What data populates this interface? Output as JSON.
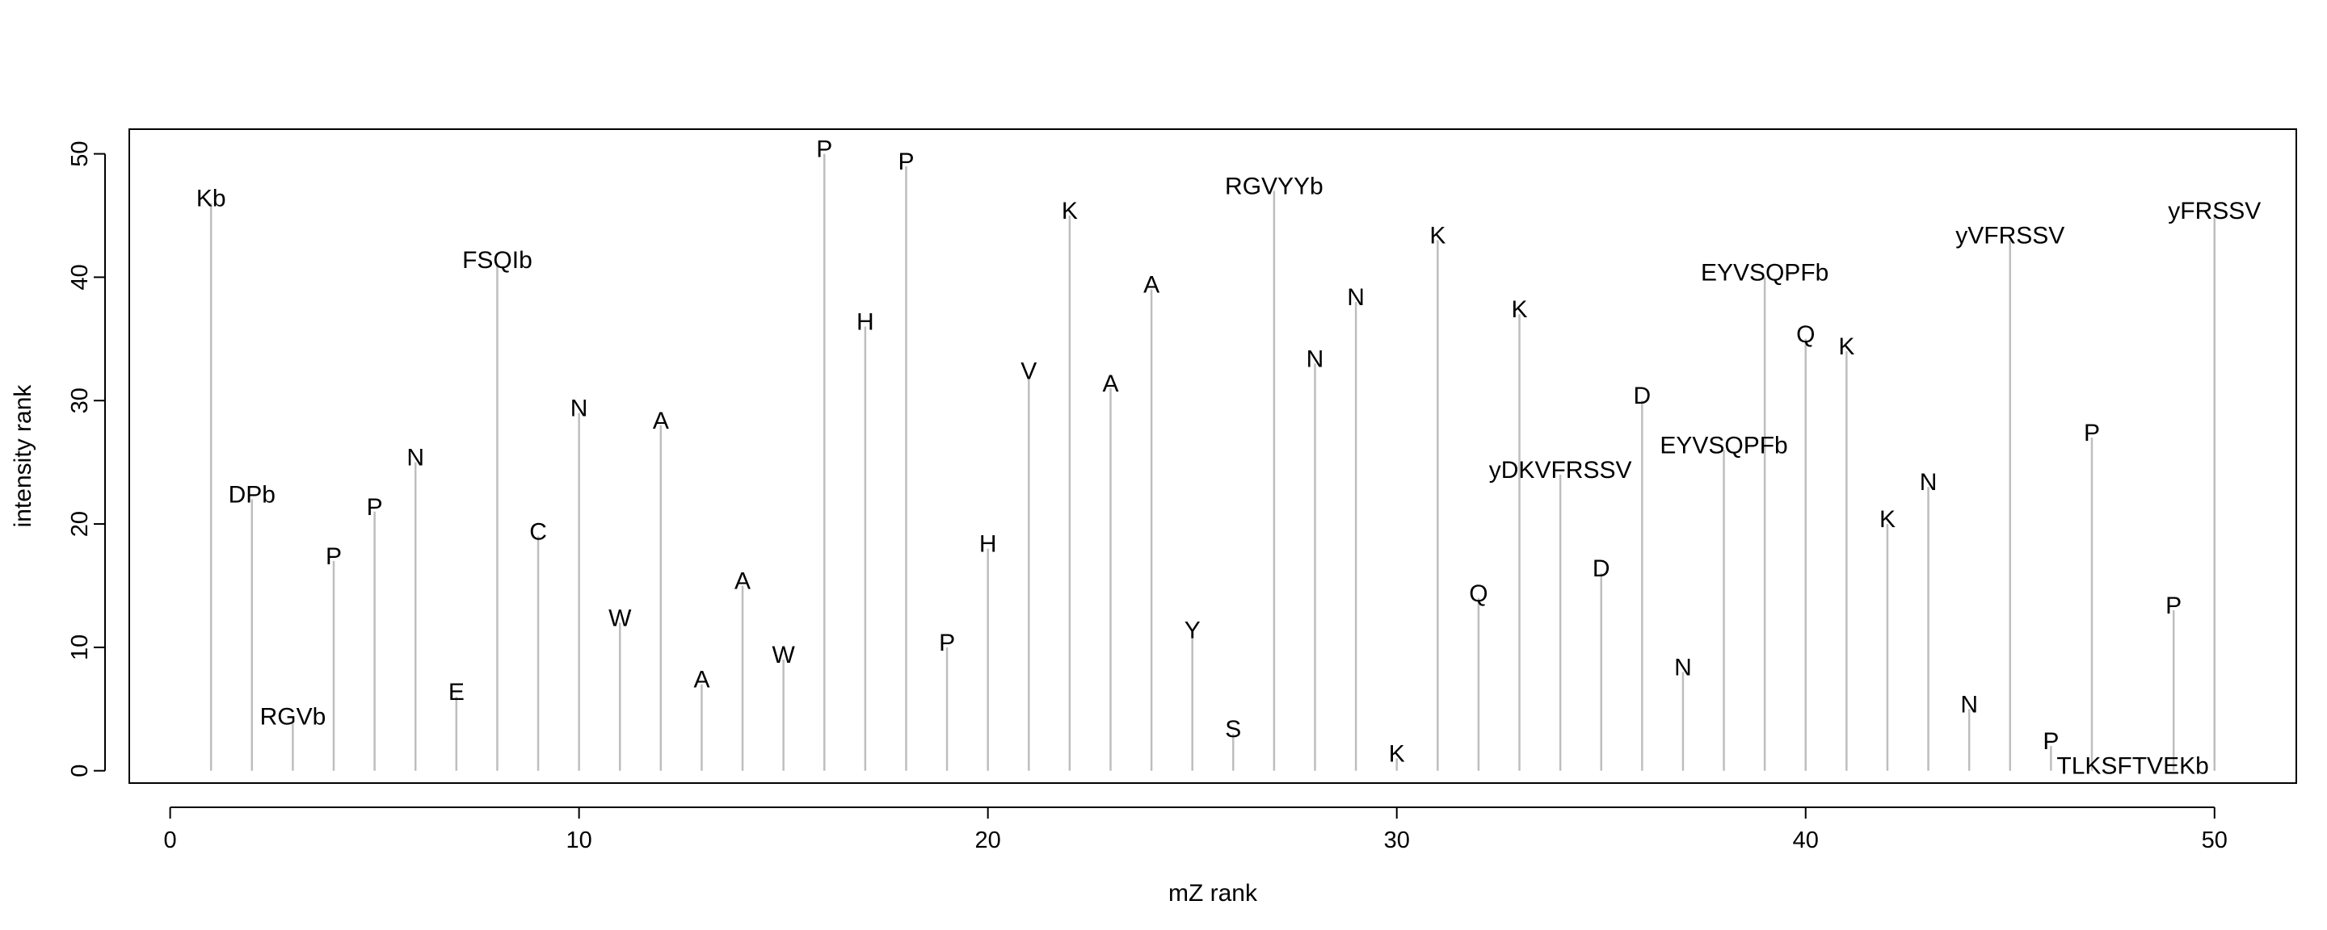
{
  "chart_data": {
    "type": "stem",
    "xlabel": "mZ rank",
    "ylabel": "intensity rank",
    "xlim": [
      -1,
      52
    ],
    "ylim": [
      -1,
      52
    ],
    "x_ticks": [
      0,
      10,
      20,
      30,
      40,
      50
    ],
    "y_ticks": [
      0,
      10,
      20,
      30,
      40,
      50
    ],
    "colors": {
      "stem": "#bebebe",
      "axis": "#000000"
    },
    "points": [
      {
        "x": 1,
        "y": 46,
        "label": "Kb"
      },
      {
        "x": 2,
        "y": 22,
        "label": "DPb"
      },
      {
        "x": 3,
        "y": 4,
        "label": "RGVb"
      },
      {
        "x": 4,
        "y": 17,
        "label": "P"
      },
      {
        "x": 5,
        "y": 21,
        "label": "P"
      },
      {
        "x": 6,
        "y": 25,
        "label": "N"
      },
      {
        "x": 7,
        "y": 6,
        "label": "E"
      },
      {
        "x": 8,
        "y": 41,
        "label": "FSQIb"
      },
      {
        "x": 9,
        "y": 19,
        "label": "C"
      },
      {
        "x": 10,
        "y": 29,
        "label": "N"
      },
      {
        "x": 11,
        "y": 12,
        "label": "W"
      },
      {
        "x": 12,
        "y": 28,
        "label": "A"
      },
      {
        "x": 13,
        "y": 7,
        "label": "A"
      },
      {
        "x": 14,
        "y": 15,
        "label": "A"
      },
      {
        "x": 15,
        "y": 9,
        "label": "W"
      },
      {
        "x": 16,
        "y": 50,
        "label": "P"
      },
      {
        "x": 17,
        "y": 36,
        "label": "H"
      },
      {
        "x": 18,
        "y": 49,
        "label": "P"
      },
      {
        "x": 19,
        "y": 10,
        "label": "P"
      },
      {
        "x": 20,
        "y": 18,
        "label": "H"
      },
      {
        "x": 21,
        "y": 32,
        "label": "V"
      },
      {
        "x": 22,
        "y": 45,
        "label": "K"
      },
      {
        "x": 23,
        "y": 31,
        "label": "A"
      },
      {
        "x": 24,
        "y": 39,
        "label": "A"
      },
      {
        "x": 25,
        "y": 11,
        "label": "Y"
      },
      {
        "x": 26,
        "y": 3,
        "label": "S"
      },
      {
        "x": 27,
        "y": 47,
        "label": "RGVYYb"
      },
      {
        "x": 28,
        "y": 33,
        "label": "N"
      },
      {
        "x": 29,
        "y": 38,
        "label": "N"
      },
      {
        "x": 30,
        "y": 1,
        "label": "K"
      },
      {
        "x": 31,
        "y": 43,
        "label": "K"
      },
      {
        "x": 32,
        "y": 14,
        "label": "Q"
      },
      {
        "x": 33,
        "y": 37,
        "label": "K"
      },
      {
        "x": 34,
        "y": 24,
        "label": "yDKVFRSSV"
      },
      {
        "x": 35,
        "y": 16,
        "label": "D"
      },
      {
        "x": 36,
        "y": 30,
        "label": "D"
      },
      {
        "x": 37,
        "y": 8,
        "label": "N"
      },
      {
        "x": 38,
        "y": 26,
        "label": "EYVSQPFb"
      },
      {
        "x": 39,
        "y": 40,
        "label": "EYVSQPFb"
      },
      {
        "x": 40,
        "y": 35,
        "label": "Q"
      },
      {
        "x": 41,
        "y": 34,
        "label": "K"
      },
      {
        "x": 42,
        "y": 20,
        "label": "K"
      },
      {
        "x": 43,
        "y": 23,
        "label": "N"
      },
      {
        "x": 44,
        "y": 5,
        "label": "N"
      },
      {
        "x": 45,
        "y": 43,
        "label": "yVFRSSV"
      },
      {
        "x": 46,
        "y": 2,
        "label": "P"
      },
      {
        "x": 47,
        "y": 27,
        "label": "P"
      },
      {
        "x": 48,
        "y": 0,
        "label": "TLKSFTVEKb"
      },
      {
        "x": 49,
        "y": 13,
        "label": "P"
      },
      {
        "x": 50,
        "y": 45,
        "label": "yFRSSV"
      }
    ]
  }
}
